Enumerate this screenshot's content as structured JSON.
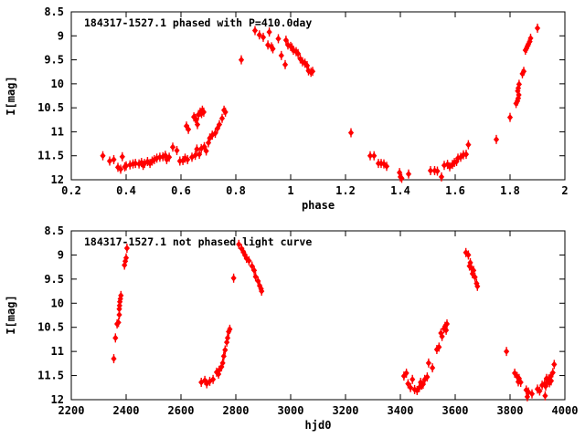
{
  "figure": {
    "background": "#ffffff",
    "point_color": "#ff0000",
    "axis_color": "#000000"
  },
  "chart_data": [
    {
      "type": "scatter",
      "title": "184317-1527.1 phased with P=410.0day",
      "xlabel": "phase",
      "ylabel": "I[mag]",
      "xlim": [
        0.2,
        2
      ],
      "ylim": [
        8.5,
        12
      ],
      "y_inverted": true,
      "grid": false,
      "legend": "none",
      "marker": "red-diamond-errorbar",
      "xticks": [
        "0.2",
        "0.4",
        "0.6",
        "0.8",
        "1",
        "1.2",
        "1.4",
        "1.6",
        "1.8",
        "2"
      ],
      "yticks": [
        "8.5",
        "9",
        "9.5",
        "10",
        "10.5",
        "11",
        "11.5",
        "12"
      ],
      "points": [
        [
          0.315,
          11.5
        ],
        [
          0.34,
          11.61
        ],
        [
          0.355,
          11.58
        ],
        [
          0.37,
          11.74
        ],
        [
          0.38,
          11.78
        ],
        [
          0.386,
          11.52
        ],
        [
          0.395,
          11.73
        ],
        [
          0.4,
          11.71
        ],
        [
          0.414,
          11.69
        ],
        [
          0.425,
          11.67
        ],
        [
          0.434,
          11.66
        ],
        [
          0.447,
          11.67
        ],
        [
          0.456,
          11.64
        ],
        [
          0.462,
          11.7
        ],
        [
          0.467,
          11.66
        ],
        [
          0.478,
          11.62
        ],
        [
          0.487,
          11.66
        ],
        [
          0.495,
          11.61
        ],
        [
          0.503,
          11.58
        ],
        [
          0.512,
          11.55
        ],
        [
          0.523,
          11.53
        ],
        [
          0.534,
          11.52
        ],
        [
          0.543,
          11.49
        ],
        [
          0.548,
          11.58
        ],
        [
          0.557,
          11.53
        ],
        [
          0.57,
          11.32
        ],
        [
          0.585,
          11.39
        ],
        [
          0.596,
          11.61
        ],
        [
          0.607,
          11.6
        ],
        [
          0.615,
          11.55
        ],
        [
          0.624,
          11.58
        ],
        [
          0.64,
          11.53
        ],
        [
          0.652,
          11.49
        ],
        [
          0.658,
          11.36
        ],
        [
          0.667,
          11.47
        ],
        [
          0.674,
          11.35
        ],
        [
          0.685,
          11.31
        ],
        [
          0.692,
          11.4
        ],
        [
          0.62,
          10.88
        ],
        [
          0.627,
          10.95
        ],
        [
          0.647,
          10.69
        ],
        [
          0.652,
          10.72
        ],
        [
          0.656,
          10.75
        ],
        [
          0.66,
          10.85
        ],
        [
          0.664,
          10.64
        ],
        [
          0.67,
          10.59
        ],
        [
          0.675,
          10.62
        ],
        [
          0.678,
          10.55
        ],
        [
          0.683,
          10.59
        ],
        [
          0.7,
          11.23
        ],
        [
          0.705,
          11.13
        ],
        [
          0.714,
          11.07
        ],
        [
          0.725,
          11.03
        ],
        [
          0.733,
          10.93
        ],
        [
          0.74,
          10.85
        ],
        [
          0.75,
          10.72
        ],
        [
          0.757,
          10.55
        ],
        [
          0.762,
          10.59
        ],
        [
          0.82,
          9.5
        ],
        [
          0.87,
          8.89
        ],
        [
          0.886,
          8.98
        ],
        [
          0.9,
          9.03
        ],
        [
          0.917,
          9.19
        ],
        [
          0.922,
          8.92
        ],
        [
          0.93,
          9.23
        ],
        [
          0.935,
          9.27
        ],
        [
          0.955,
          9.06
        ],
        [
          0.966,
          9.41
        ],
        [
          0.98,
          9.6
        ],
        [
          0.983,
          9.09
        ],
        [
          0.99,
          9.19
        ],
        [
          1.0,
          9.22
        ],
        [
          1.005,
          9.25
        ],
        [
          1.01,
          9.3
        ],
        [
          1.02,
          9.33
        ],
        [
          1.027,
          9.37
        ],
        [
          1.035,
          9.48
        ],
        [
          1.043,
          9.54
        ],
        [
          1.052,
          9.57
        ],
        [
          1.06,
          9.62
        ],
        [
          1.065,
          9.73
        ],
        [
          1.074,
          9.76
        ],
        [
          1.08,
          9.74
        ],
        [
          1.22,
          11.02
        ],
        [
          1.29,
          11.5
        ],
        [
          1.304,
          11.5
        ],
        [
          1.32,
          11.66
        ],
        [
          1.33,
          11.66
        ],
        [
          1.34,
          11.67
        ],
        [
          1.35,
          11.72
        ],
        [
          1.397,
          11.85
        ],
        [
          1.4,
          11.94
        ],
        [
          1.405,
          11.97
        ],
        [
          1.43,
          11.88
        ],
        [
          1.51,
          11.81
        ],
        [
          1.525,
          11.81
        ],
        [
          1.535,
          11.82
        ],
        [
          1.55,
          11.94
        ],
        [
          1.56,
          11.7
        ],
        [
          1.572,
          11.68
        ],
        [
          1.58,
          11.73
        ],
        [
          1.59,
          11.68
        ],
        [
          1.597,
          11.64
        ],
        [
          1.605,
          11.62
        ],
        [
          1.61,
          11.55
        ],
        [
          1.62,
          11.53
        ],
        [
          1.63,
          11.48
        ],
        [
          1.64,
          11.47
        ],
        [
          1.648,
          11.27
        ],
        [
          1.75,
          11.16
        ],
        [
          1.8,
          10.7
        ],
        [
          1.822,
          10.41
        ],
        [
          1.827,
          10.36
        ],
        [
          1.83,
          10.3
        ],
        [
          1.832,
          10.23
        ],
        [
          1.828,
          10.15
        ],
        [
          1.83,
          10.09
        ],
        [
          1.833,
          10.01
        ],
        [
          1.845,
          9.79
        ],
        [
          1.85,
          9.74
        ],
        [
          1.856,
          9.3
        ],
        [
          1.86,
          9.26
        ],
        [
          1.864,
          9.21
        ],
        [
          1.867,
          9.17
        ],
        [
          1.872,
          9.12
        ],
        [
          1.875,
          9.05
        ],
        [
          1.9,
          8.84
        ]
      ]
    },
    {
      "type": "scatter",
      "title": "184317-1527.1 not phased light curve",
      "xlabel": "hjd0",
      "ylabel": "I[mag]",
      "xlim": [
        2200,
        4000
      ],
      "ylim": [
        8.5,
        12
      ],
      "y_inverted": true,
      "grid": false,
      "legend": "none",
      "marker": "red-diamond-errorbar",
      "xticks": [
        "2200",
        "2400",
        "2600",
        "2800",
        "3000",
        "3200",
        "3400",
        "3600",
        "3800",
        "4000"
      ],
      "yticks": [
        "8.5",
        "9",
        "9.5",
        "10",
        "10.5",
        "11",
        "11.5",
        "12"
      ],
      "points": [
        [
          2355,
          11.15
        ],
        [
          2361,
          10.72
        ],
        [
          2367,
          10.43
        ],
        [
          2372,
          10.4
        ],
        [
          2375,
          10.24
        ],
        [
          2375,
          10.12
        ],
        [
          2376,
          10.05
        ],
        [
          2377,
          9.97
        ],
        [
          2379,
          9.91
        ],
        [
          2381,
          9.84
        ],
        [
          2394,
          9.21
        ],
        [
          2397,
          9.13
        ],
        [
          2400,
          9.06
        ],
        [
          2403,
          8.86
        ],
        [
          2674,
          11.64
        ],
        [
          2687,
          11.6
        ],
        [
          2694,
          11.67
        ],
        [
          2705,
          11.62
        ],
        [
          2717,
          11.58
        ],
        [
          2730,
          11.43
        ],
        [
          2737,
          11.47
        ],
        [
          2739,
          11.39
        ],
        [
          2748,
          11.32
        ],
        [
          2752,
          11.24
        ],
        [
          2756,
          11.1
        ],
        [
          2761,
          10.97
        ],
        [
          2767,
          10.81
        ],
        [
          2770,
          10.72
        ],
        [
          2774,
          10.59
        ],
        [
          2778,
          10.54
        ],
        [
          2792,
          9.48
        ],
        [
          2811,
          8.78
        ],
        [
          2821,
          8.87
        ],
        [
          2828,
          8.94
        ],
        [
          2833,
          9.0
        ],
        [
          2839,
          9.07
        ],
        [
          2848,
          9.12
        ],
        [
          2859,
          9.23
        ],
        [
          2867,
          9.32
        ],
        [
          2872,
          9.45
        ],
        [
          2881,
          9.54
        ],
        [
          2887,
          9.64
        ],
        [
          2892,
          9.7
        ],
        [
          2894,
          9.75
        ],
        [
          3413,
          11.51
        ],
        [
          3422,
          11.45
        ],
        [
          3428,
          11.67
        ],
        [
          3437,
          11.75
        ],
        [
          3444,
          11.58
        ],
        [
          3452,
          11.79
        ],
        [
          3461,
          11.81
        ],
        [
          3469,
          11.75
        ],
        [
          3474,
          11.64
        ],
        [
          3478,
          11.7
        ],
        [
          3483,
          11.68
        ],
        [
          3489,
          11.58
        ],
        [
          3498,
          11.53
        ],
        [
          3503,
          11.24
        ],
        [
          3517,
          11.34
        ],
        [
          3533,
          10.96
        ],
        [
          3541,
          10.91
        ],
        [
          3548,
          10.62
        ],
        [
          3552,
          10.69
        ],
        [
          3559,
          10.53
        ],
        [
          3563,
          10.48
        ],
        [
          3567,
          10.56
        ],
        [
          3570,
          10.43
        ],
        [
          3639,
          8.95
        ],
        [
          3648,
          9.0
        ],
        [
          3652,
          9.23
        ],
        [
          3655,
          9.16
        ],
        [
          3659,
          9.27
        ],
        [
          3663,
          9.39
        ],
        [
          3667,
          9.32
        ],
        [
          3672,
          9.46
        ],
        [
          3678,
          9.59
        ],
        [
          3681,
          9.65
        ],
        [
          3787,
          11.0
        ],
        [
          3817,
          11.45
        ],
        [
          3826,
          11.52
        ],
        [
          3830,
          11.63
        ],
        [
          3833,
          11.56
        ],
        [
          3839,
          11.64
        ],
        [
          3859,
          11.8
        ],
        [
          3863,
          11.94
        ],
        [
          3867,
          11.84
        ],
        [
          3880,
          11.88
        ],
        [
          3900,
          11.78
        ],
        [
          3908,
          11.82
        ],
        [
          3917,
          11.7
        ],
        [
          3926,
          11.67
        ],
        [
          3928,
          11.92
        ],
        [
          3930,
          11.72
        ],
        [
          3933,
          11.56
        ],
        [
          3937,
          11.63
        ],
        [
          3941,
          11.57
        ],
        [
          3944,
          11.65
        ],
        [
          3948,
          11.52
        ],
        [
          3950,
          11.61
        ],
        [
          3956,
          11.44
        ],
        [
          3961,
          11.27
        ]
      ]
    }
  ]
}
